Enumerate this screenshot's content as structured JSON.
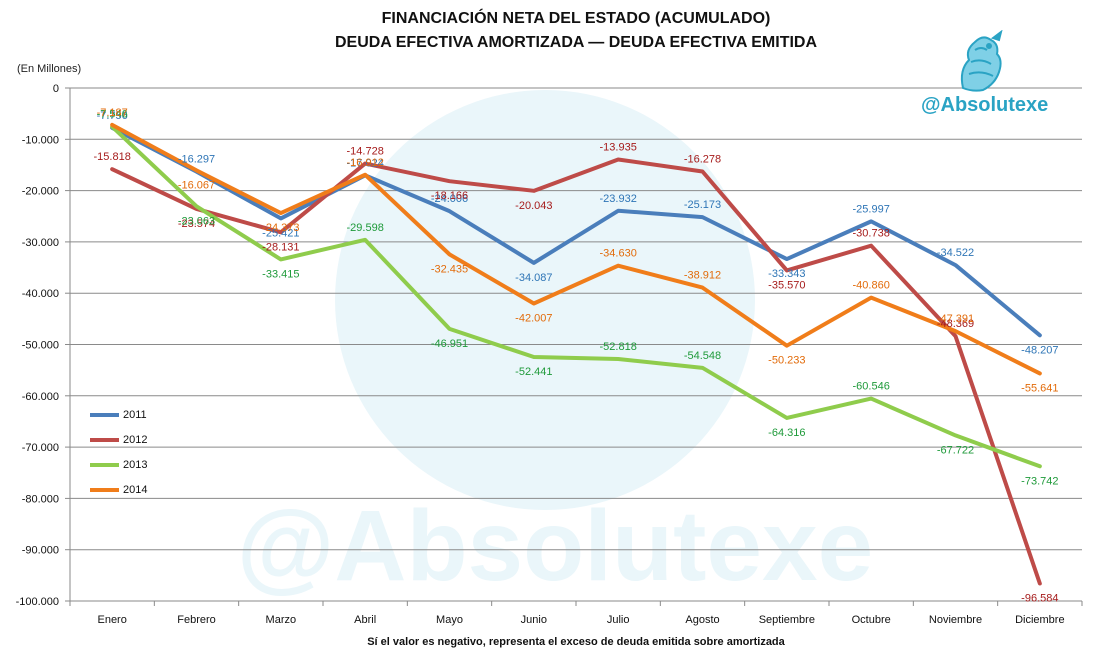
{
  "header": {
    "title_line1": "FINANCIACIÓN NETA DEL ESTADO (ACUMULADO)",
    "title_line2": "DEUDA EFECTIVA AMORTIZADA — DEUDA EFECTIVA EMITIDA"
  },
  "unit_label": "(En Millones)",
  "footnote": "Sí el valor es negativo, representa el exceso de deuda emitida sobre amortizada",
  "brand": {
    "name": "@Absolutexe",
    "watermark": "@Absolutexe",
    "color": "#2aa3c4",
    "logo_icon": "griffin-logo-icon"
  },
  "chart_data": {
    "type": "line",
    "categories": [
      "Enero",
      "Febrero",
      "Marzo",
      "Abril",
      "Mayo",
      "Junio",
      "Julio",
      "Agosto",
      "Septiembre",
      "Octubre",
      "Noviembre",
      "Diciembre"
    ],
    "ylim": [
      -100000,
      0
    ],
    "y_ticks": [
      0,
      -10000,
      -20000,
      -30000,
      -40000,
      -50000,
      -60000,
      -70000,
      -80000,
      -90000,
      -100000
    ],
    "y_tick_labels": [
      "0",
      "-10.000",
      "-20.000",
      "-30.000",
      "-40.000",
      "-50.000",
      "-60.000",
      "-70.000",
      "-80.000",
      "-90.000",
      "-100.000"
    ],
    "grid": true,
    "legend_position": "left",
    "series": [
      {
        "name": "2011",
        "color": "#4a7ebb",
        "label_color": "#2e75b6",
        "values": [
          -7756,
          -16297,
          -25421,
          -17024,
          -24006,
          -34087,
          -23932,
          -25173,
          -33343,
          -25997,
          -34522,
          -48207
        ],
        "labels": [
          "-7.756",
          "-16.297",
          "-25.421",
          "-17.024",
          "-24.006",
          "-34.087",
          "-23.932",
          "-25.173",
          "-33.343",
          "-25.997",
          "-34.522",
          "-48.207"
        ]
      },
      {
        "name": "2012",
        "color": "#be4b48",
        "label_color": "#a61c1c",
        "values": [
          -15818,
          -23574,
          -28131,
          -14728,
          -18166,
          -20043,
          -13935,
          -16278,
          -35570,
          -30738,
          -48369,
          -96584
        ],
        "labels": [
          "-15.818",
          "-23.574",
          "-28.131",
          "-14.728",
          "-18.166",
          "-20.043",
          "-13.935",
          "-16.278",
          "-35.570",
          "-30.738",
          "-48.369",
          "-96.584"
        ]
      },
      {
        "name": "2013",
        "color": "#8fcc4c",
        "label_color": "#1f9a3a",
        "values": [
          -7546,
          -23063,
          -33415,
          -29598,
          -46951,
          -52441,
          -52818,
          -54548,
          -64316,
          -60546,
          -67722,
          -73742
        ],
        "labels": [
          "-7.546",
          "-23.063",
          "-33.415",
          "-29.598",
          "-46.951",
          "-52.441",
          "-52.818",
          "-54.548",
          "-64.316",
          "-60.546",
          "-67.722",
          "-73.742"
        ]
      },
      {
        "name": "2014",
        "color": "#f07d1a",
        "label_color": "#e26b0a",
        "values": [
          -7187,
          -16067,
          -24373,
          -16912,
          -32435,
          -42007,
          -34630,
          -38912,
          -50233,
          -40860,
          -47391,
          -55641
        ],
        "labels": [
          "-7.187",
          "-16.067",
          "-24.373",
          "-16.912",
          "-32.435",
          "-42.007",
          "-34.630",
          "-38.912",
          "-50.233",
          "-40.860",
          "-47.391",
          "-55.641"
        ]
      }
    ]
  }
}
